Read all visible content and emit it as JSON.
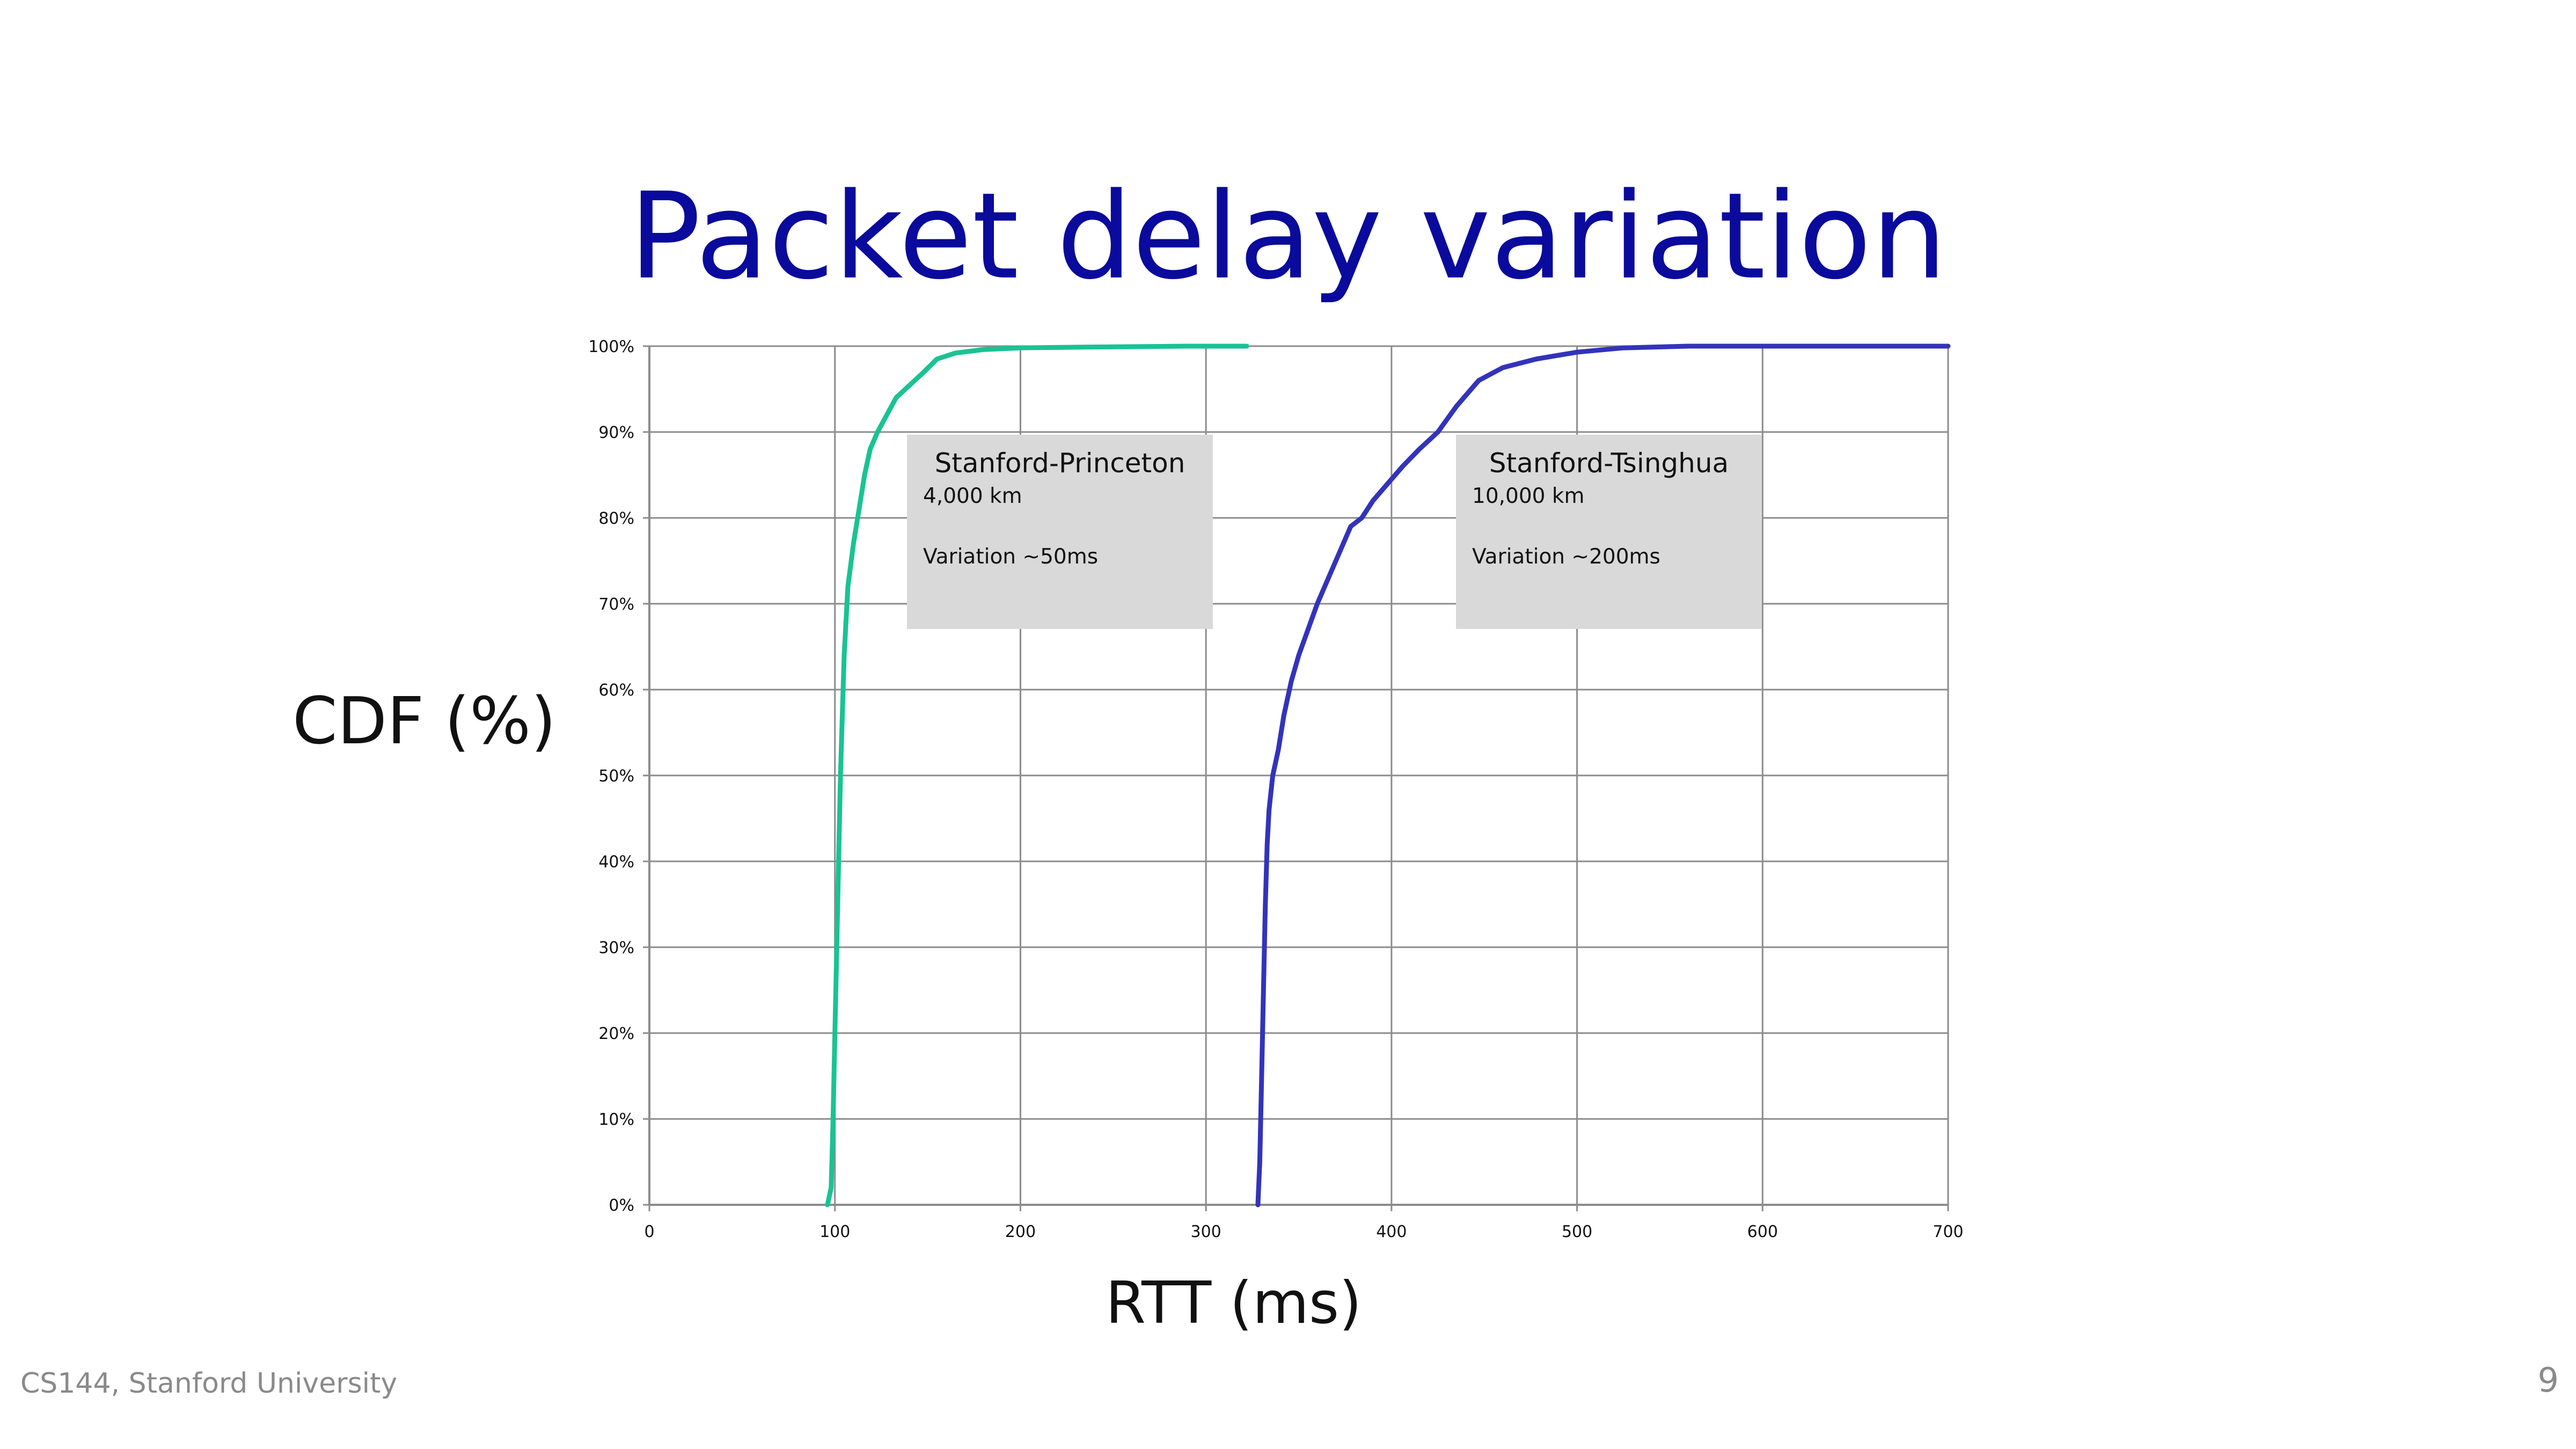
{
  "slide": {
    "title": "Packet delay variation",
    "footer": "CS144, Stanford University",
    "page_number": "9"
  },
  "chart_data": {
    "type": "line",
    "xlabel": "RTT (ms)",
    "ylabel": "CDF (%)",
    "xlim": [
      0,
      700
    ],
    "ylim": [
      0,
      100
    ],
    "xticks": [
      0,
      100,
      200,
      300,
      400,
      500,
      600,
      700
    ],
    "yticks": [
      "0%",
      "10%",
      "20%",
      "30%",
      "40%",
      "50%",
      "60%",
      "70%",
      "80%",
      "90%",
      "100%"
    ],
    "grid": true,
    "series": [
      {
        "color": "#19c393",
        "x": [
          96,
          98,
          99,
          100,
          101,
          102,
          103,
          104,
          105,
          107,
          110,
          113,
          116,
          119,
          123,
          128,
          133,
          138,
          143,
          148,
          155,
          165,
          180,
          200,
          240,
          290,
          322
        ],
        "y": [
          0,
          2,
          10,
          20,
          30,
          40,
          50,
          57,
          64,
          72,
          77,
          81,
          85,
          88,
          90,
          92,
          94,
          95,
          96,
          97,
          98.5,
          99.2,
          99.6,
          99.8,
          99.9,
          100,
          100
        ]
      },
      {
        "color": "#3333bb",
        "x": [
          328,
          329,
          330,
          331,
          332,
          333,
          334,
          336,
          339,
          342,
          346,
          350,
          355,
          360,
          366,
          372,
          378,
          384,
          390,
          398,
          406,
          415,
          425,
          435,
          447,
          460,
          478,
          500,
          525,
          560,
          620,
          700
        ],
        "y": [
          0,
          5,
          15,
          25,
          35,
          42,
          46,
          50,
          53,
          57,
          61,
          64,
          67,
          70,
          73,
          76,
          79,
          80,
          82,
          84,
          86,
          88,
          90,
          93,
          96,
          97.5,
          98.5,
          99.3,
          99.8,
          100,
          100,
          100
        ]
      }
    ],
    "annotations": [
      {
        "title": "Stanford-Princeton",
        "line1": "4,000 km",
        "line2": "Variation ~50ms"
      },
      {
        "title": "Stanford-Tsinghua",
        "line1": "10,000 km",
        "line2": "Variation ~200ms"
      }
    ]
  }
}
